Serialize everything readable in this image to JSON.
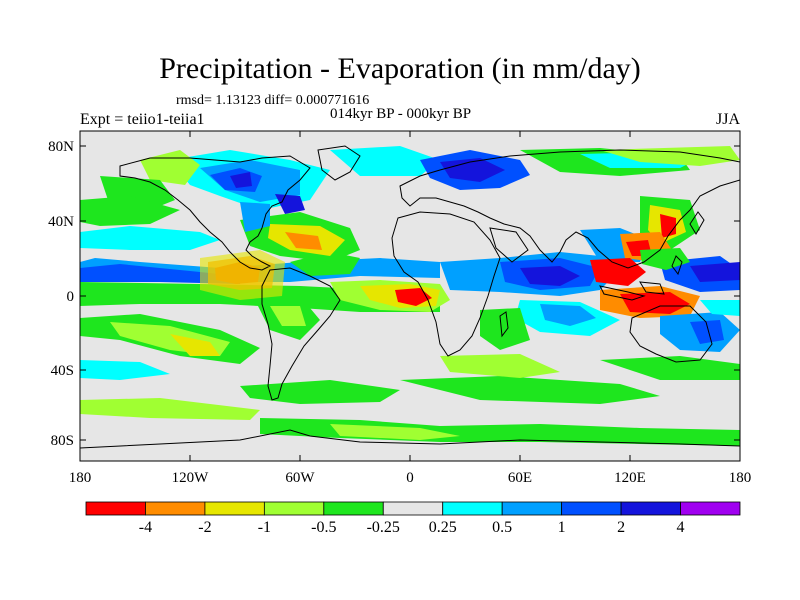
{
  "title": "Precipitation - Evaporation (in mm/day)",
  "stats_line": "rmsd= 1.13123 diff= 0.000771616",
  "period": "014kyr BP - 000kyr BP",
  "experiment": "Expt = teiio1-teiia1",
  "season": "JJA",
  "map": {
    "projection": "cylindrical equidistant",
    "lat_tick_labels": [
      "80N",
      "40N",
      "0",
      "40S",
      "80S"
    ],
    "lon_tick_labels": [
      "180",
      "120W",
      "60W",
      "0",
      "60E",
      "120E",
      "180"
    ],
    "background_color": "#e6e6e6",
    "coastline_color": "#000000"
  },
  "colorbar": {
    "labels": [
      "-4",
      "-2",
      "-1",
      "-0.5",
      "-0.25",
      "0.25",
      "0.5",
      "1",
      "2",
      "4"
    ],
    "colors": [
      "#ff0000",
      "#ff8c00",
      "#e6e600",
      "#a0ff32",
      "#1ee61e",
      "#e6e6e6",
      "#00ffff",
      "#00a0ff",
      "#0050ff",
      "#1414dc",
      "#a000f0"
    ]
  }
}
